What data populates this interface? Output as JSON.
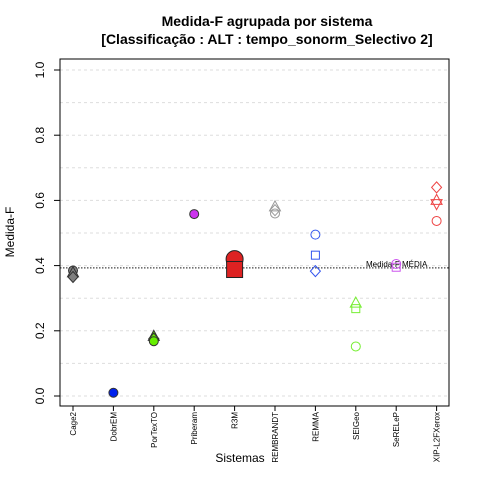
{
  "chart_data": {
    "type": "scatter",
    "title_line1": "Medida-F agrupada por sistema",
    "title_line2": "[Classificação : ALT : tempo_sonorm_Selectivo 2]",
    "xlabel": "Sistemas",
    "ylabel": "Medida-F",
    "ylim": [
      0,
      1
    ],
    "yticks": [
      0.0,
      0.2,
      0.4,
      0.6,
      0.8,
      1.0
    ],
    "ytick_labels": [
      "0.0",
      "0.2",
      "0.4",
      "0.6",
      "0.8",
      "1.0"
    ],
    "grid": true,
    "categories": [
      "Cage2",
      "DobrEM",
      "PorTexTO",
      "Priberam",
      "R3M",
      "REMBRANDT",
      "REMMA",
      "SEIGeo",
      "SeRELeP",
      "XIP-L2FXerox"
    ],
    "reference_line": {
      "label": "Medida-F MÉDIA",
      "value": 0.393
    },
    "points": [
      {
        "category": "Cage2",
        "value": 0.385,
        "shape": "circle",
        "color": "#808080",
        "fill": true
      },
      {
        "category": "Cage2",
        "value": 0.378,
        "shape": "triangle",
        "color": "#808080",
        "fill": true
      },
      {
        "category": "Cage2",
        "value": 0.365,
        "shape": "diamond",
        "color": "#808080",
        "fill": true
      },
      {
        "category": "DobrEM",
        "value": 0.01,
        "shape": "circle",
        "color": "#0022ee",
        "fill": true
      },
      {
        "category": "PorTexTO",
        "value": 0.183,
        "shape": "triangle",
        "color": "#66ee00",
        "fill": true
      },
      {
        "category": "PorTexTO",
        "value": 0.176,
        "shape": "diamond",
        "color": "#66ee00",
        "fill": true
      },
      {
        "category": "PorTexTO",
        "value": 0.168,
        "shape": "circle",
        "color": "#66ee00",
        "fill": true
      },
      {
        "category": "Priberam",
        "value": 0.558,
        "shape": "circle",
        "color": "#cc33ee",
        "fill": true
      },
      {
        "category": "R3M",
        "value": 0.42,
        "shape": "circle-large",
        "color": "#dd2222",
        "fill": true
      },
      {
        "category": "R3M",
        "value": 0.388,
        "shape": "square-large",
        "color": "#dd2222",
        "fill": true
      },
      {
        "category": "REMBRANDT",
        "value": 0.58,
        "shape": "triangle",
        "color": "#999999",
        "fill": false
      },
      {
        "category": "REMBRANDT",
        "value": 0.57,
        "shape": "diamond",
        "color": "#999999",
        "fill": false
      },
      {
        "category": "REMBRANDT",
        "value": 0.56,
        "shape": "circle",
        "color": "#999999",
        "fill": false
      },
      {
        "category": "REMMA",
        "value": 0.495,
        "shape": "circle",
        "color": "#3355ee",
        "fill": false
      },
      {
        "category": "REMMA",
        "value": 0.432,
        "shape": "square",
        "color": "#3355ee",
        "fill": false
      },
      {
        "category": "REMMA",
        "value": 0.383,
        "shape": "diamond",
        "color": "#3355ee",
        "fill": false
      },
      {
        "category": "SEIGeo",
        "value": 0.285,
        "shape": "triangle",
        "color": "#77ee33",
        "fill": false
      },
      {
        "category": "SEIGeo",
        "value": 0.268,
        "shape": "square",
        "color": "#77ee33",
        "fill": false
      },
      {
        "category": "SEIGeo",
        "value": 0.152,
        "shape": "circle",
        "color": "#77ee33",
        "fill": false
      },
      {
        "category": "SeRELeP",
        "value": 0.405,
        "shape": "circle",
        "color": "#cc55ee",
        "fill": false
      },
      {
        "category": "SeRELeP",
        "value": 0.395,
        "shape": "square",
        "color": "#cc55ee",
        "fill": false
      },
      {
        "category": "XIP-L2FXerox",
        "value": 0.64,
        "shape": "diamond",
        "color": "#ee4444",
        "fill": false
      },
      {
        "category": "XIP-L2FXerox",
        "value": 0.6,
        "shape": "triangle",
        "color": "#ee4444",
        "fill": false
      },
      {
        "category": "XIP-L2FXerox",
        "value": 0.59,
        "shape": "triangle-down",
        "color": "#ee4444",
        "fill": false
      },
      {
        "category": "XIP-L2FXerox",
        "value": 0.537,
        "shape": "circle",
        "color": "#ee4444",
        "fill": false
      }
    ]
  }
}
